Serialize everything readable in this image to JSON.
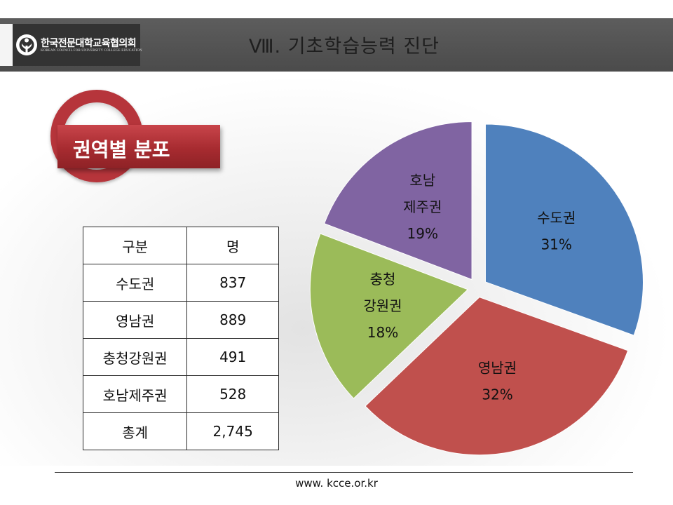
{
  "header": {
    "org_name": "한국전문대학교육협의회",
    "org_name_en": "KOREAN COUNCIL FOR UNIVERSITY COLLEGE EDUCATION",
    "page_title": "Ⅷ. 기초학습능력 진단",
    "logo_icon": "kcce-logo-icon"
  },
  "section": {
    "label": "권역별 분포"
  },
  "table": {
    "headers": [
      "구분",
      "명"
    ],
    "rows": [
      {
        "region": "수도권",
        "count": "837"
      },
      {
        "region": "영남권",
        "count": "889"
      },
      {
        "region": "충청강원권",
        "count": "491"
      },
      {
        "region": "호남제주권",
        "count": "528"
      }
    ],
    "total": {
      "label": "총계",
      "count": "2,745"
    }
  },
  "chart_data": {
    "type": "pie",
    "categories": [
      "수도권",
      "영남권",
      "충청강원권",
      "호남제주권"
    ],
    "values": [
      837,
      889,
      491,
      528
    ],
    "label_lines": [
      [
        "수도권"
      ],
      [
        "영남권"
      ],
      [
        "충청",
        "강원권"
      ],
      [
        "호남",
        "제주권"
      ]
    ],
    "percent_labels": [
      "31%",
      "32%",
      "18%",
      "19%"
    ],
    "colors": [
      "#4f81bd",
      "#c0504d",
      "#9bbb59",
      "#8064a2"
    ],
    "legend": "none"
  },
  "footer": {
    "url": "www. kcce.or.kr"
  }
}
